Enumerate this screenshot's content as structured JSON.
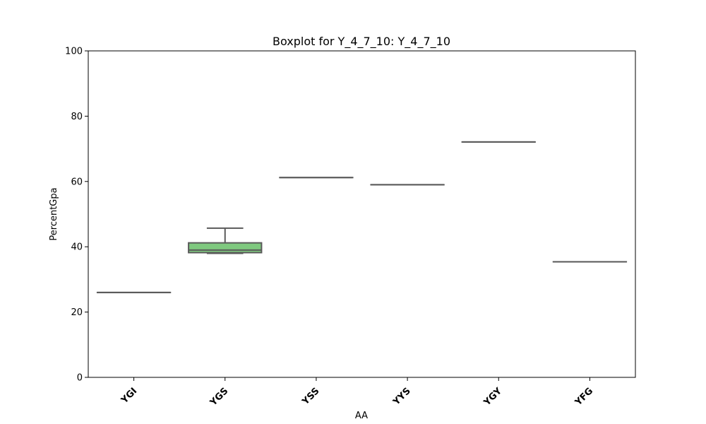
{
  "chart_data": {
    "type": "boxplot",
    "title": "Boxplot for Y_4_7_10: Y_4_7_10",
    "xlabel": "AA",
    "ylabel": "PercentGpa",
    "ylim": [
      0,
      100
    ],
    "yticks": [
      0,
      20,
      40,
      60,
      80,
      100
    ],
    "grid": false,
    "categories": [
      "YGI",
      "YGS",
      "YSS",
      "YYS",
      "YGY",
      "YFG"
    ],
    "boxes": [
      {
        "category": "YGI",
        "min": 26.0,
        "q1": 26.0,
        "median": 26.0,
        "q3": 26.0,
        "max": 26.0
      },
      {
        "category": "YGS",
        "min": 38.0,
        "q1": 38.2,
        "median": 39.0,
        "q3": 41.2,
        "max": 45.7
      },
      {
        "category": "YSS",
        "min": 61.2,
        "q1": 61.2,
        "median": 61.2,
        "q3": 61.2,
        "max": 61.2
      },
      {
        "category": "YYS",
        "min": 59.0,
        "q1": 59.0,
        "median": 59.0,
        "q3": 59.0,
        "max": 59.0
      },
      {
        "category": "YGY",
        "min": 72.1,
        "q1": 72.1,
        "median": 72.1,
        "q3": 72.1,
        "max": 72.1
      },
      {
        "category": "YFG",
        "min": 35.4,
        "q1": 35.4,
        "median": 35.4,
        "q3": 35.4,
        "max": 35.4
      }
    ],
    "box_color": "#7fc97f",
    "line_color": "#5a5a5a"
  }
}
